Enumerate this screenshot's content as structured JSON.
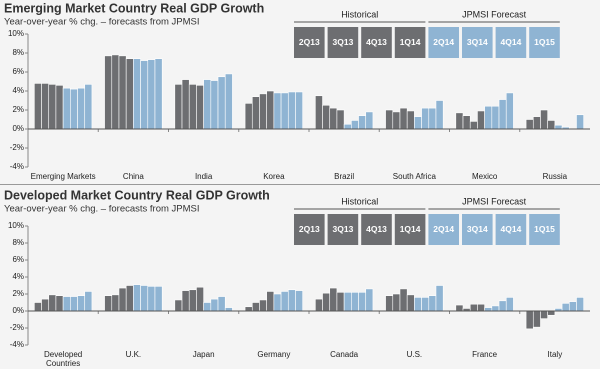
{
  "chart_data": [
    {
      "type": "bar",
      "title": "Emerging Market Country Real GDP Growth",
      "subtitle": "Year-over-year % chg. – forecasts from JPMSI",
      "categories": [
        "Emerging Markets",
        "China",
        "India",
        "Korea",
        "Brazil",
        "South Africa",
        "Mexico",
        "Russia"
      ],
      "series": [
        {
          "name": "2Q13",
          "group": "Historical",
          "color": "#6d6e71",
          "values": [
            4.8,
            7.7,
            4.7,
            2.7,
            3.5,
            2.0,
            1.7,
            1.0
          ]
        },
        {
          "name": "3Q13",
          "group": "Historical",
          "color": "#6d6e71",
          "values": [
            4.8,
            7.8,
            5.2,
            3.4,
            2.5,
            1.8,
            1.4,
            1.3
          ]
        },
        {
          "name": "4Q13",
          "group": "Historical",
          "color": "#6d6e71",
          "values": [
            4.7,
            7.7,
            4.7,
            3.7,
            2.2,
            2.2,
            0.8,
            2.0
          ]
        },
        {
          "name": "1Q14",
          "group": "Historical",
          "color": "#6d6e71",
          "values": [
            4.6,
            7.4,
            4.6,
            4.0,
            2.0,
            1.9,
            1.9,
            0.9
          ]
        },
        {
          "name": "2Q14",
          "group": "JPMSI Forecast",
          "color": "#8fb4d3",
          "values": [
            4.3,
            7.4,
            5.2,
            3.8,
            0.5,
            1.3,
            2.4,
            0.4
          ]
        },
        {
          "name": "3Q14",
          "group": "JPMSI Forecast",
          "color": "#8fb4d3",
          "values": [
            4.2,
            7.2,
            5.1,
            3.8,
            0.9,
            2.2,
            2.4,
            0.2
          ]
        },
        {
          "name": "4Q14",
          "group": "JPMSI Forecast",
          "color": "#8fb4d3",
          "values": [
            4.3,
            7.3,
            5.5,
            3.9,
            1.4,
            2.2,
            3.1,
            0.0
          ]
        },
        {
          "name": "1Q15",
          "group": "JPMSI Forecast",
          "color": "#8fb4d3",
          "values": [
            4.7,
            7.4,
            5.8,
            3.9,
            1.8,
            3.0,
            3.8,
            1.5
          ]
        }
      ],
      "ylim": [
        -4,
        10
      ],
      "yticks": [
        {
          "value": -4,
          "label": "-4%"
        },
        {
          "value": -2,
          "label": "-2%"
        },
        {
          "value": 0,
          "label": "0%"
        },
        {
          "value": 2,
          "label": "2%"
        },
        {
          "value": 4,
          "label": "4%"
        },
        {
          "value": 6,
          "label": "6%"
        },
        {
          "value": 8,
          "label": "8%"
        },
        {
          "value": 10,
          "label": "10%"
        }
      ]
    },
    {
      "type": "bar",
      "title": "Developed Market Country Real GDP Growth",
      "subtitle": "Year-over-year % chg. – forecasts from JPMSI",
      "categories": [
        "Developed Countries",
        "U.K.",
        "Japan",
        "Germany",
        "Canada",
        "U.S.",
        "France",
        "Italy"
      ],
      "series": [
        {
          "name": "2Q13",
          "group": "Historical",
          "color": "#6d6e71",
          "values": [
            1.0,
            1.8,
            1.3,
            0.5,
            1.4,
            1.8,
            0.7,
            -2.1
          ]
        },
        {
          "name": "3Q13",
          "group": "Historical",
          "color": "#6d6e71",
          "values": [
            1.4,
            1.9,
            2.4,
            1.0,
            2.1,
            2.0,
            0.3,
            -1.9
          ]
        },
        {
          "name": "4Q13",
          "group": "Historical",
          "color": "#6d6e71",
          "values": [
            1.9,
            2.7,
            2.5,
            1.3,
            2.7,
            2.6,
            0.8,
            -0.9
          ]
        },
        {
          "name": "1Q14",
          "group": "Historical",
          "color": "#6d6e71",
          "values": [
            1.8,
            3.0,
            2.8,
            2.3,
            2.2,
            1.9,
            0.8,
            -0.5
          ]
        },
        {
          "name": "2Q14",
          "group": "JPMSI Forecast",
          "color": "#8fb4d3",
          "values": [
            1.7,
            3.1,
            1.0,
            2.0,
            2.2,
            1.6,
            0.4,
            0.3
          ]
        },
        {
          "name": "3Q14",
          "group": "JPMSI Forecast",
          "color": "#8fb4d3",
          "values": [
            1.7,
            3.0,
            1.4,
            2.3,
            2.2,
            1.6,
            0.6,
            0.9
          ]
        },
        {
          "name": "4Q14",
          "group": "JPMSI Forecast",
          "color": "#8fb4d3",
          "values": [
            1.8,
            2.9,
            1.7,
            2.5,
            2.2,
            1.8,
            1.2,
            1.1
          ]
        },
        {
          "name": "1Q15",
          "group": "JPMSI Forecast",
          "color": "#8fb4d3",
          "values": [
            2.3,
            2.9,
            0.4,
            2.4,
            2.6,
            3.0,
            1.6,
            1.6
          ]
        }
      ],
      "ylim": [
        -4,
        10
      ],
      "yticks": [
        {
          "value": -4,
          "label": "-4%"
        },
        {
          "value": -2,
          "label": "-2%"
        },
        {
          "value": 0,
          "label": "0%"
        },
        {
          "value": 2,
          "label": "2%"
        },
        {
          "value": 4,
          "label": "4%"
        },
        {
          "value": 6,
          "label": "6%"
        },
        {
          "value": 8,
          "label": "8%"
        },
        {
          "value": 10,
          "label": "10%"
        }
      ]
    }
  ]
}
